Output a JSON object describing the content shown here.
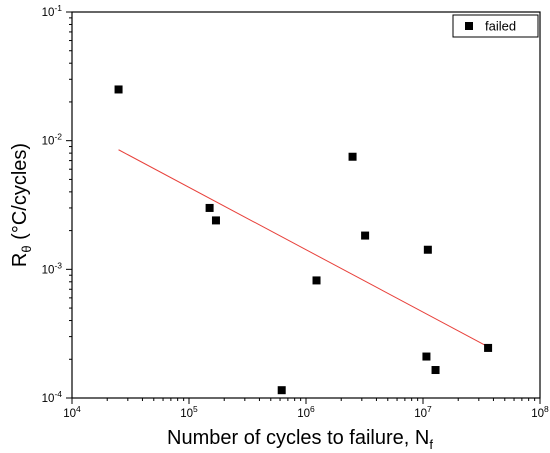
{
  "chart_data": {
    "type": "scatter",
    "xscale": "log",
    "yscale": "log",
    "xlim": [
      10000,
      100000000
    ],
    "ylim": [
      0.0001,
      0.1
    ],
    "xlabel": {
      "main": "Number of cycles to failure, N",
      "sub": "f"
    },
    "ylabel": {
      "main": "R",
      "sub": "θ",
      "rest": " (°C/cycles)"
    },
    "x_ticks": [
      {
        "value": 10000,
        "base": "10",
        "exp": "4"
      },
      {
        "value": 100000,
        "base": "10",
        "exp": "5"
      },
      {
        "value": 1000000,
        "base": "10",
        "exp": "6"
      },
      {
        "value": 10000000,
        "base": "10",
        "exp": "7"
      },
      {
        "value": 100000000,
        "base": "10",
        "exp": "8"
      }
    ],
    "y_ticks": [
      {
        "value": 0.0001,
        "base": "10",
        "exp": "-4"
      },
      {
        "value": 0.001,
        "base": "10",
        "exp": "-3"
      },
      {
        "value": 0.01,
        "base": "10",
        "exp": "-2"
      },
      {
        "value": 0.1,
        "base": "10",
        "exp": "-1"
      }
    ],
    "series": [
      {
        "name": "failed",
        "marker": "square",
        "color": "#000000",
        "points": [
          {
            "x": 25000,
            "y": 0.025
          },
          {
            "x": 150000,
            "y": 0.003
          },
          {
            "x": 170000,
            "y": 0.0024
          },
          {
            "x": 620000,
            "y": 0.000115
          },
          {
            "x": 1230000,
            "y": 0.00082
          },
          {
            "x": 2500000,
            "y": 0.0075
          },
          {
            "x": 3200000,
            "y": 0.00183
          },
          {
            "x": 10700000,
            "y": 0.00021
          },
          {
            "x": 11000000,
            "y": 0.00142
          },
          {
            "x": 12800000,
            "y": 0.000165
          },
          {
            "x": 36000000,
            "y": 0.000245
          }
        ]
      }
    ],
    "fit_line": {
      "color": "#e8413b",
      "points": [
        {
          "x": 25000,
          "y": 0.0085
        },
        {
          "x": 36000000,
          "y": 0.00025
        }
      ]
    },
    "legend": {
      "position": "top-right"
    },
    "grid": false
  }
}
